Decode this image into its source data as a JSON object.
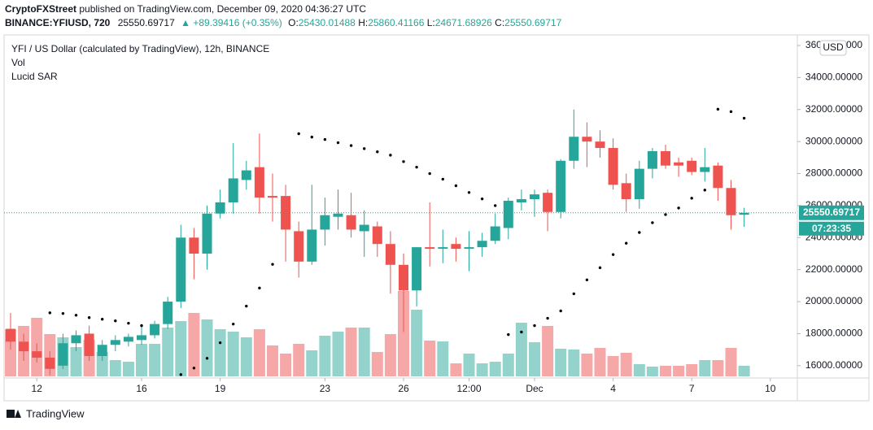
{
  "header": {
    "author": "CryptoFXStreet",
    "published": "published on TradingView.com, December 09, 2020 04:36:27 UTC",
    "symbol": "BINANCE:YFIUSD, 720",
    "last": "25550.69717",
    "change": "▲ +89.39416 (+0.35%)",
    "o_label": "O:",
    "o": "25430.01488",
    "h_label": "H:",
    "h": "25860.41166",
    "l_label": "L:",
    "l": "24671.68926",
    "c_label": "C:",
    "c": "25550.69717"
  },
  "legend": {
    "main": "YFI / US Dollar (calculated by TradingView), 12h, BINANCE",
    "vol": "Vol",
    "sar": "Lucid SAR"
  },
  "currency": "USD",
  "countdown": "07:23:35",
  "logo": "TradingView",
  "chart_data": {
    "type": "candlestick",
    "categories": [
      null,
      null,
      "12",
      null,
      null,
      null,
      null,
      null,
      null,
      null,
      "16",
      null,
      null,
      null,
      null,
      null,
      "19",
      null,
      null,
      null,
      null,
      null,
      null,
      null,
      "23",
      null,
      null,
      null,
      null,
      null,
      "26",
      null,
      null,
      null,
      null,
      "12:00",
      null,
      null,
      null,
      null,
      "Dec",
      null,
      null,
      null,
      null,
      null,
      "4",
      null,
      null,
      null,
      null,
      null,
      "7",
      null,
      null,
      null,
      null,
      null,
      "10",
      null
    ],
    "open": [
      18300,
      17500,
      16900,
      16500,
      16000,
      17400,
      18000,
      16600,
      17300,
      17500,
      17600,
      17900,
      18600,
      20000,
      24000,
      23000,
      25500,
      26200,
      27600,
      28400,
      26600,
      26600,
      24400,
      22500,
      24500,
      25300,
      25400,
      24400,
      24700,
      23600,
      22300,
      20700,
      23400,
      23300,
      23600,
      23300,
      23400,
      23800,
      24600,
      26200,
      26400,
      26800,
      25600,
      28800,
      30300,
      30000,
      29600,
      27400,
      26400,
      28300,
      29400,
      28700,
      28800,
      28100,
      28500,
      27100,
      25430.01488,
      null,
      null,
      null
    ],
    "high": [
      19300,
      18000,
      17400,
      16900,
      18000,
      18200,
      18500,
      17600,
      17900,
      18000,
      18600,
      18800,
      20300,
      24800,
      24600,
      26000,
      27000,
      29900,
      28800,
      30500,
      28000,
      27300,
      25000,
      27300,
      26500,
      27000,
      26800,
      25700,
      25000,
      24400,
      23000,
      23400,
      26200,
      24500,
      24000,
      24400,
      24300,
      25500,
      26500,
      27000,
      27000,
      27000,
      28900,
      32000,
      31200,
      30700,
      30200,
      28000,
      28800,
      29600,
      29800,
      29000,
      29000,
      29600,
      28700,
      27600,
      25860.41166,
      null,
      null,
      null
    ],
    "low": [
      17000,
      16300,
      16200,
      15400,
      15800,
      16900,
      16300,
      16300,
      16900,
      17200,
      17300,
      17700,
      18300,
      19600,
      21400,
      22000,
      25200,
      25500,
      27000,
      25500,
      25000,
      22500,
      21500,
      22300,
      23500,
      24500,
      24000,
      22800,
      22800,
      20500,
      18100,
      19700,
      22200,
      22400,
      22500,
      21900,
      22800,
      23600,
      23900,
      25700,
      25300,
      24400,
      25200,
      28300,
      28400,
      29000,
      27000,
      25600,
      25800,
      27700,
      28300,
      27800,
      27900,
      27500,
      26300,
      24500,
      24671.68926,
      null,
      null,
      null
    ],
    "close": [
      17500,
      16900,
      16500,
      15800,
      17400,
      17900,
      16600,
      17300,
      17600,
      17800,
      17900,
      18600,
      20000,
      24000,
      23000,
      25500,
      26200,
      27700,
      28200,
      26500,
      26500,
      24500,
      22500,
      24500,
      25400,
      25500,
      24500,
      24800,
      23600,
      22300,
      20700,
      23400,
      23300,
      23400,
      23300,
      23400,
      23800,
      24700,
      26300,
      26400,
      26700,
      25600,
      28800,
      30300,
      30000,
      29600,
      27300,
      26400,
      28300,
      29400,
      28500,
      28500,
      28100,
      28400,
      27100,
      25400,
      25550.69717,
      null,
      null,
      null
    ],
    "volume": [
      58,
      62,
      72,
      52,
      48,
      36,
      45,
      30,
      20,
      18,
      40,
      40,
      60,
      68,
      78,
      70,
      58,
      55,
      48,
      58,
      38,
      28,
      40,
      32,
      50,
      55,
      60,
      60,
      30,
      52,
      105,
      82,
      44,
      43,
      16,
      28,
      16,
      18,
      28,
      66,
      42,
      62,
      34,
      33,
      28,
      35,
      25,
      29,
      15,
      12,
      13,
      13,
      15,
      20,
      20,
      35,
      13,
      null,
      null,
      null
    ],
    "sar": [
      null,
      null,
      null,
      19300,
      19260,
      19150,
      19000,
      18900,
      18800,
      18650,
      18500,
      null,
      null,
      15440,
      15850,
      16460,
      17430,
      18600,
      19720,
      20850,
      22330,
      null,
      30490,
      30280,
      30130,
      29930,
      29750,
      29560,
      29360,
      29150,
      28750,
      28400,
      28000,
      27650,
      27240,
      26820,
      26420,
      26000,
      17940,
      18100,
      18500,
      18960,
      19420,
      20490,
      21360,
      22120,
      22940,
      23650,
      24320,
      24930,
      25440,
      25850,
      26460,
      26970,
      32020,
      31870,
      31460,
      null,
      null,
      null
    ],
    "ylim": [
      15230,
      36660
    ],
    "yticks": [
      {
        "value": 16000,
        "label": "16000.00000"
      },
      {
        "value": 18000,
        "label": "18000.00000"
      },
      {
        "value": 20000,
        "label": "20000.00000"
      },
      {
        "value": 22000,
        "label": "22000.00000"
      },
      {
        "value": 24000,
        "label": "24000.00000"
      },
      {
        "value": 26000,
        "label": "26000.00000"
      },
      {
        "value": 28000,
        "label": "28000.00000"
      },
      {
        "value": 30000,
        "label": "30000.00000"
      },
      {
        "value": 32000,
        "label": "32000.00000"
      },
      {
        "value": 34000,
        "label": "34000.00000"
      },
      {
        "value": 36000,
        "label": "36000.00000"
      }
    ],
    "up_color": "#26a69a",
    "down_color": "#ef5350",
    "volume_up_color": "#93d3cc",
    "volume_down_color": "#f6a8a8",
    "sar_color": "#000000"
  }
}
